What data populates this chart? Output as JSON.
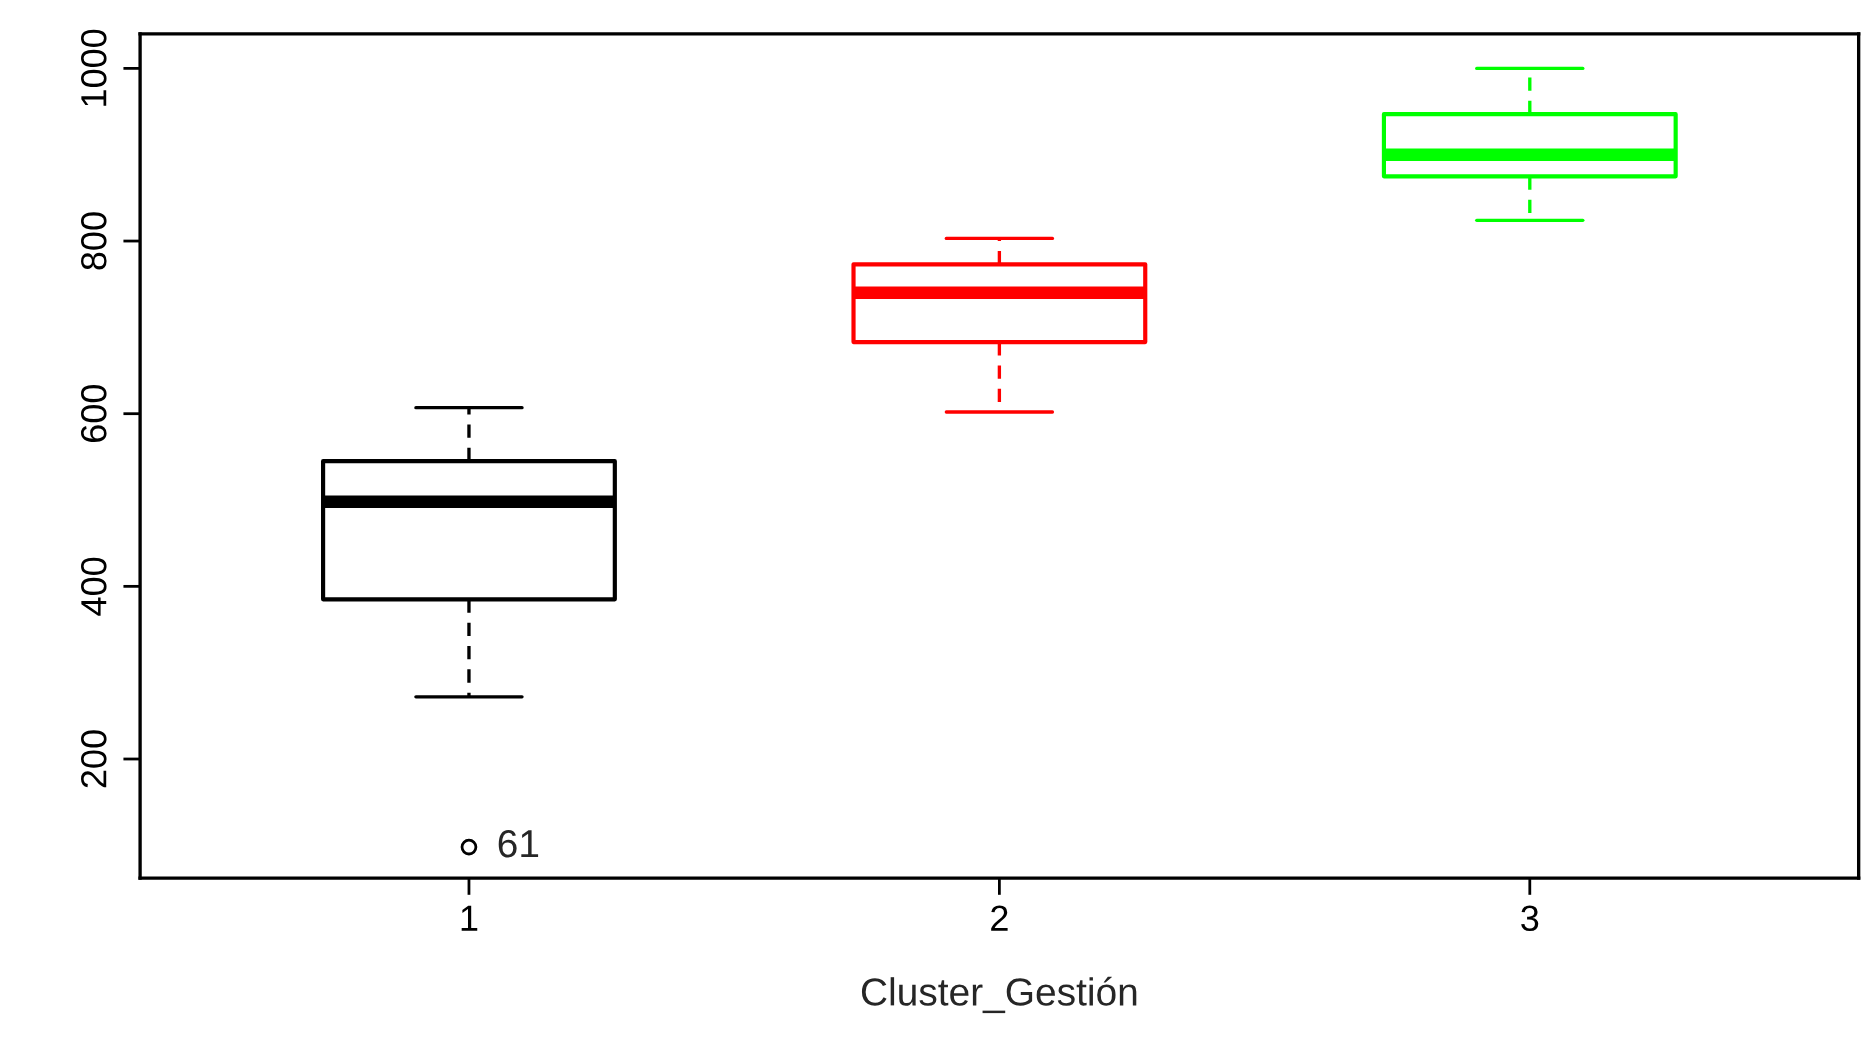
{
  "chart_data": {
    "type": "box",
    "xlabel": "Cluster_Gestión",
    "categories": [
      "1",
      "2",
      "3"
    ],
    "boxes": [
      {
        "low": 272,
        "q1": 385,
        "median": 498,
        "q3": 545,
        "high": 607,
        "outliers": [
          98
        ]
      },
      {
        "low": 602,
        "q1": 683,
        "median": 740,
        "q3": 773,
        "high": 803
      },
      {
        "low": 824,
        "q1": 875,
        "median": 900,
        "q3": 947,
        "high": 1000
      }
    ],
    "colors": [
      "#000000",
      "#ff0000",
      "#00ff00"
    ],
    "ylim": [
      62,
      1040
    ],
    "yticks": [
      200,
      400,
      600,
      800,
      1000
    ],
    "annotations": [
      "61"
    ],
    "grid": false,
    "legend": false
  }
}
